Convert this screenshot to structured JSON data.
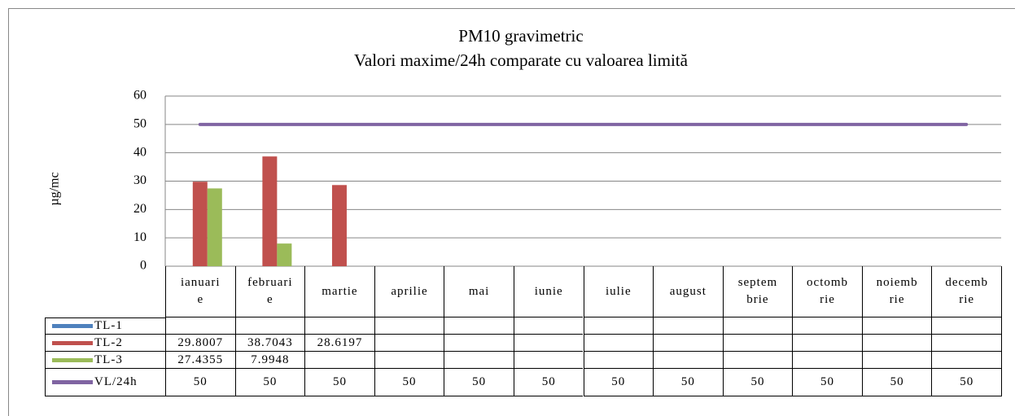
{
  "chart_data": {
    "type": "bar",
    "title": "PM10 gravimetric",
    "subtitle": "Valori maxime/24h   comparate cu valoarea limită",
    "y_label": "µg/mc",
    "categories": [
      "ianuarie",
      "februarie",
      "martie",
      "aprilie",
      "mai",
      "iunie",
      "iulie",
      "august",
      "septembrie",
      "octombrie",
      "noiembrie",
      "decembrie"
    ],
    "series": [
      {
        "name": "TL-1",
        "color": "#4f81bd",
        "type": "bar",
        "values": [
          null,
          null,
          null,
          null,
          null,
          null,
          null,
          null,
          null,
          null,
          null,
          null
        ]
      },
      {
        "name": "TL-2",
        "color": "#c0504d",
        "type": "bar",
        "values": [
          29.8007,
          38.7043,
          28.6197,
          null,
          null,
          null,
          null,
          null,
          null,
          null,
          null,
          null
        ]
      },
      {
        "name": "TL-3",
        "color": "#9bbb59",
        "type": "bar",
        "values": [
          27.4355,
          7.9948,
          null,
          null,
          null,
          null,
          null,
          null,
          null,
          null,
          null,
          null
        ]
      },
      {
        "name": "VL/24h",
        "color": "#8064a2",
        "type": "line",
        "values": [
          50,
          50,
          50,
          50,
          50,
          50,
          50,
          50,
          50,
          50,
          50,
          50
        ]
      }
    ],
    "ylim": [
      0,
      60
    ],
    "yticks": [
      0,
      10,
      20,
      30,
      40,
      50,
      60
    ],
    "grid": true,
    "data_table": true
  }
}
